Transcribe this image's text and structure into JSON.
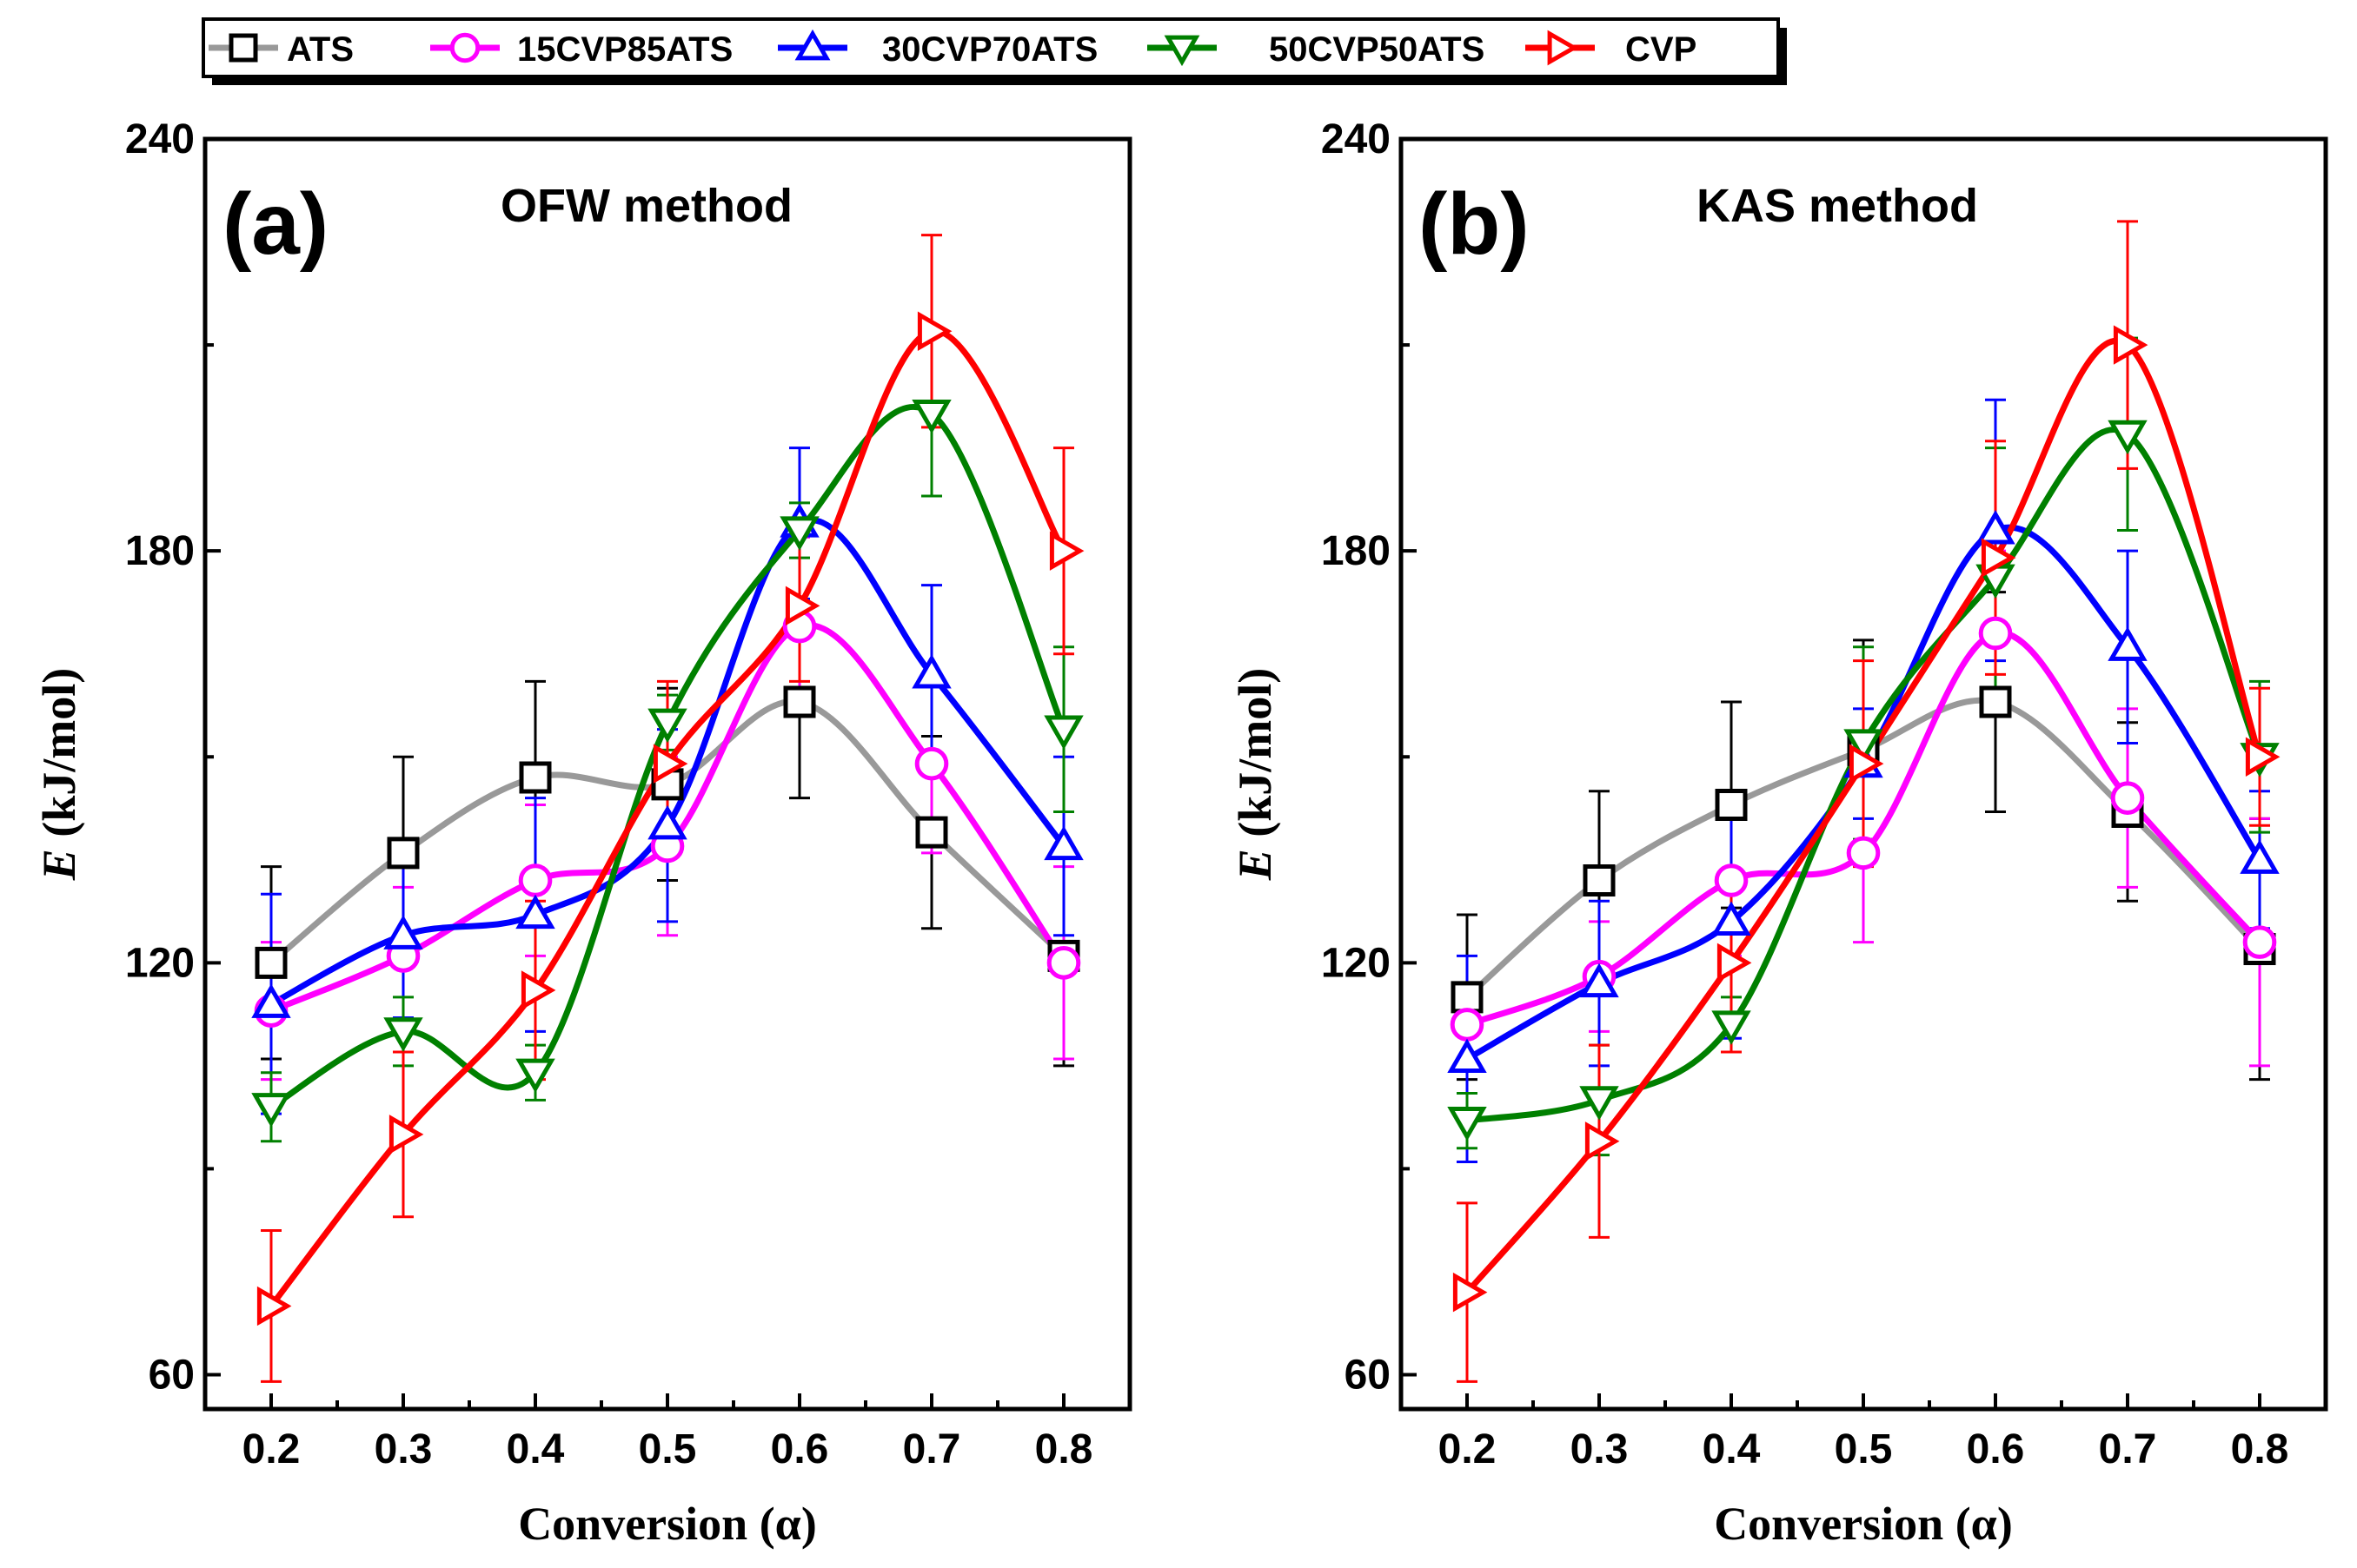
{
  "legend": {
    "entries": [
      "ATS",
      "15CVP85ATS",
      "30CVP70ATS",
      "50CVP50ATS",
      "CVP"
    ]
  },
  "chart_data": [
    {
      "type": "line",
      "panel_label": "(a)",
      "title": "OFW method",
      "xlabel": "Conversion (α)",
      "ylabel_italic": "E",
      "ylabel_rest": " (kJ/mol)",
      "xlim": [
        0.15,
        0.85
      ],
      "ylim": [
        55,
        240
      ],
      "x": [
        0.2,
        0.3,
        0.4,
        0.5,
        0.6,
        0.7,
        0.8
      ],
      "x_tick_labels": [
        "0.2",
        "0.3",
        "0.4",
        "0.5",
        "0.6",
        "0.7",
        "0.8"
      ],
      "y_ticks": [
        60,
        120,
        180,
        240
      ],
      "y_tick_labels": [
        "60",
        "120",
        "180",
        "240"
      ],
      "series": [
        {
          "name": "ATS",
          "marker": "square",
          "color": "#000000",
          "line_color": "#999999",
          "values": [
            120,
            136,
            147,
            146,
            158,
            139,
            121
          ],
          "errors": [
            14,
            14,
            14,
            14,
            14,
            14,
            16
          ]
        },
        {
          "name": "15CVP85ATS",
          "marker": "circle",
          "color": "#ff00ff",
          "line_color": "#ff00ff",
          "values": [
            113,
            121,
            132,
            137,
            169,
            149,
            120
          ],
          "errors": [
            10,
            10,
            11,
            13,
            13,
            13,
            14
          ]
        },
        {
          "name": "30CVP70ATS",
          "marker": "triangle-up",
          "color": "#0000ff",
          "line_color": "#0000ff",
          "values": [
            114,
            124,
            127,
            140,
            184,
            162,
            137
          ],
          "errors": [
            16,
            12,
            17,
            14,
            11,
            13,
            13
          ]
        },
        {
          "name": "50CVP50ATS",
          "marker": "triangle-down",
          "color": "#008000",
          "line_color": "#008000",
          "values": [
            99,
            110,
            104,
            155,
            183,
            200,
            154
          ],
          "errors": [
            5,
            5,
            4,
            4,
            4,
            12,
            12
          ]
        },
        {
          "name": "CVP",
          "marker": "triangle-right",
          "color": "#ff0000",
          "line_color": "#ff0000",
          "values": [
            70,
            95,
            116,
            149,
            172,
            212,
            180
          ],
          "errors": [
            11,
            12,
            13,
            12,
            11,
            14,
            15
          ]
        }
      ]
    },
    {
      "type": "line",
      "panel_label": "(b)",
      "title": "KAS method",
      "xlabel": "Conversion (α)",
      "ylabel_italic": "E",
      "ylabel_rest": " (kJ/mol)",
      "xlim": [
        0.15,
        0.85
      ],
      "ylim": [
        55,
        240
      ],
      "x": [
        0.2,
        0.3,
        0.4,
        0.5,
        0.6,
        0.7,
        0.8
      ],
      "x_tick_labels": [
        "0.2",
        "0.3",
        "0.4",
        "0.5",
        "0.6",
        "0.7",
        "0.8"
      ],
      "y_ticks": [
        60,
        120,
        180,
        240
      ],
      "y_tick_labels": [
        "60",
        "120",
        "180",
        "240"
      ],
      "series": [
        {
          "name": "ATS",
          "marker": "square",
          "color": "#000000",
          "line_color": "#999999",
          "values": [
            115,
            132,
            143,
            151,
            158,
            142,
            122
          ],
          "errors": [
            12,
            13,
            15,
            16,
            16,
            13,
            19
          ]
        },
        {
          "name": "15CVP85ATS",
          "marker": "circle",
          "color": "#ff00ff",
          "line_color": "#ff00ff",
          "values": [
            111,
            118,
            132,
            136,
            168,
            144,
            123
          ],
          "errors": [
            6,
            8,
            11,
            13,
            12,
            13,
            18
          ]
        },
        {
          "name": "30CVP70ATS",
          "marker": "triangle-up",
          "color": "#0000ff",
          "line_color": "#0000ff",
          "values": [
            106,
            117,
            126,
            149,
            183,
            166,
            135
          ],
          "errors": [
            15,
            12,
            17,
            8,
            19,
            14,
            10
          ]
        },
        {
          "name": "50CVP50ATS",
          "marker": "triangle-down",
          "color": "#008000",
          "line_color": "#008000",
          "values": [
            97,
            100,
            111,
            152,
            176,
            197,
            150
          ],
          "errors": [
            4,
            8,
            4,
            14,
            19,
            14,
            11
          ]
        },
        {
          "name": "CVP",
          "marker": "triangle-right",
          "color": "#ff0000",
          "line_color": "#ff0000",
          "values": [
            72,
            94,
            120,
            149,
            179,
            210,
            150
          ],
          "errors": [
            13,
            14,
            13,
            15,
            17,
            18,
            10
          ]
        }
      ]
    }
  ]
}
